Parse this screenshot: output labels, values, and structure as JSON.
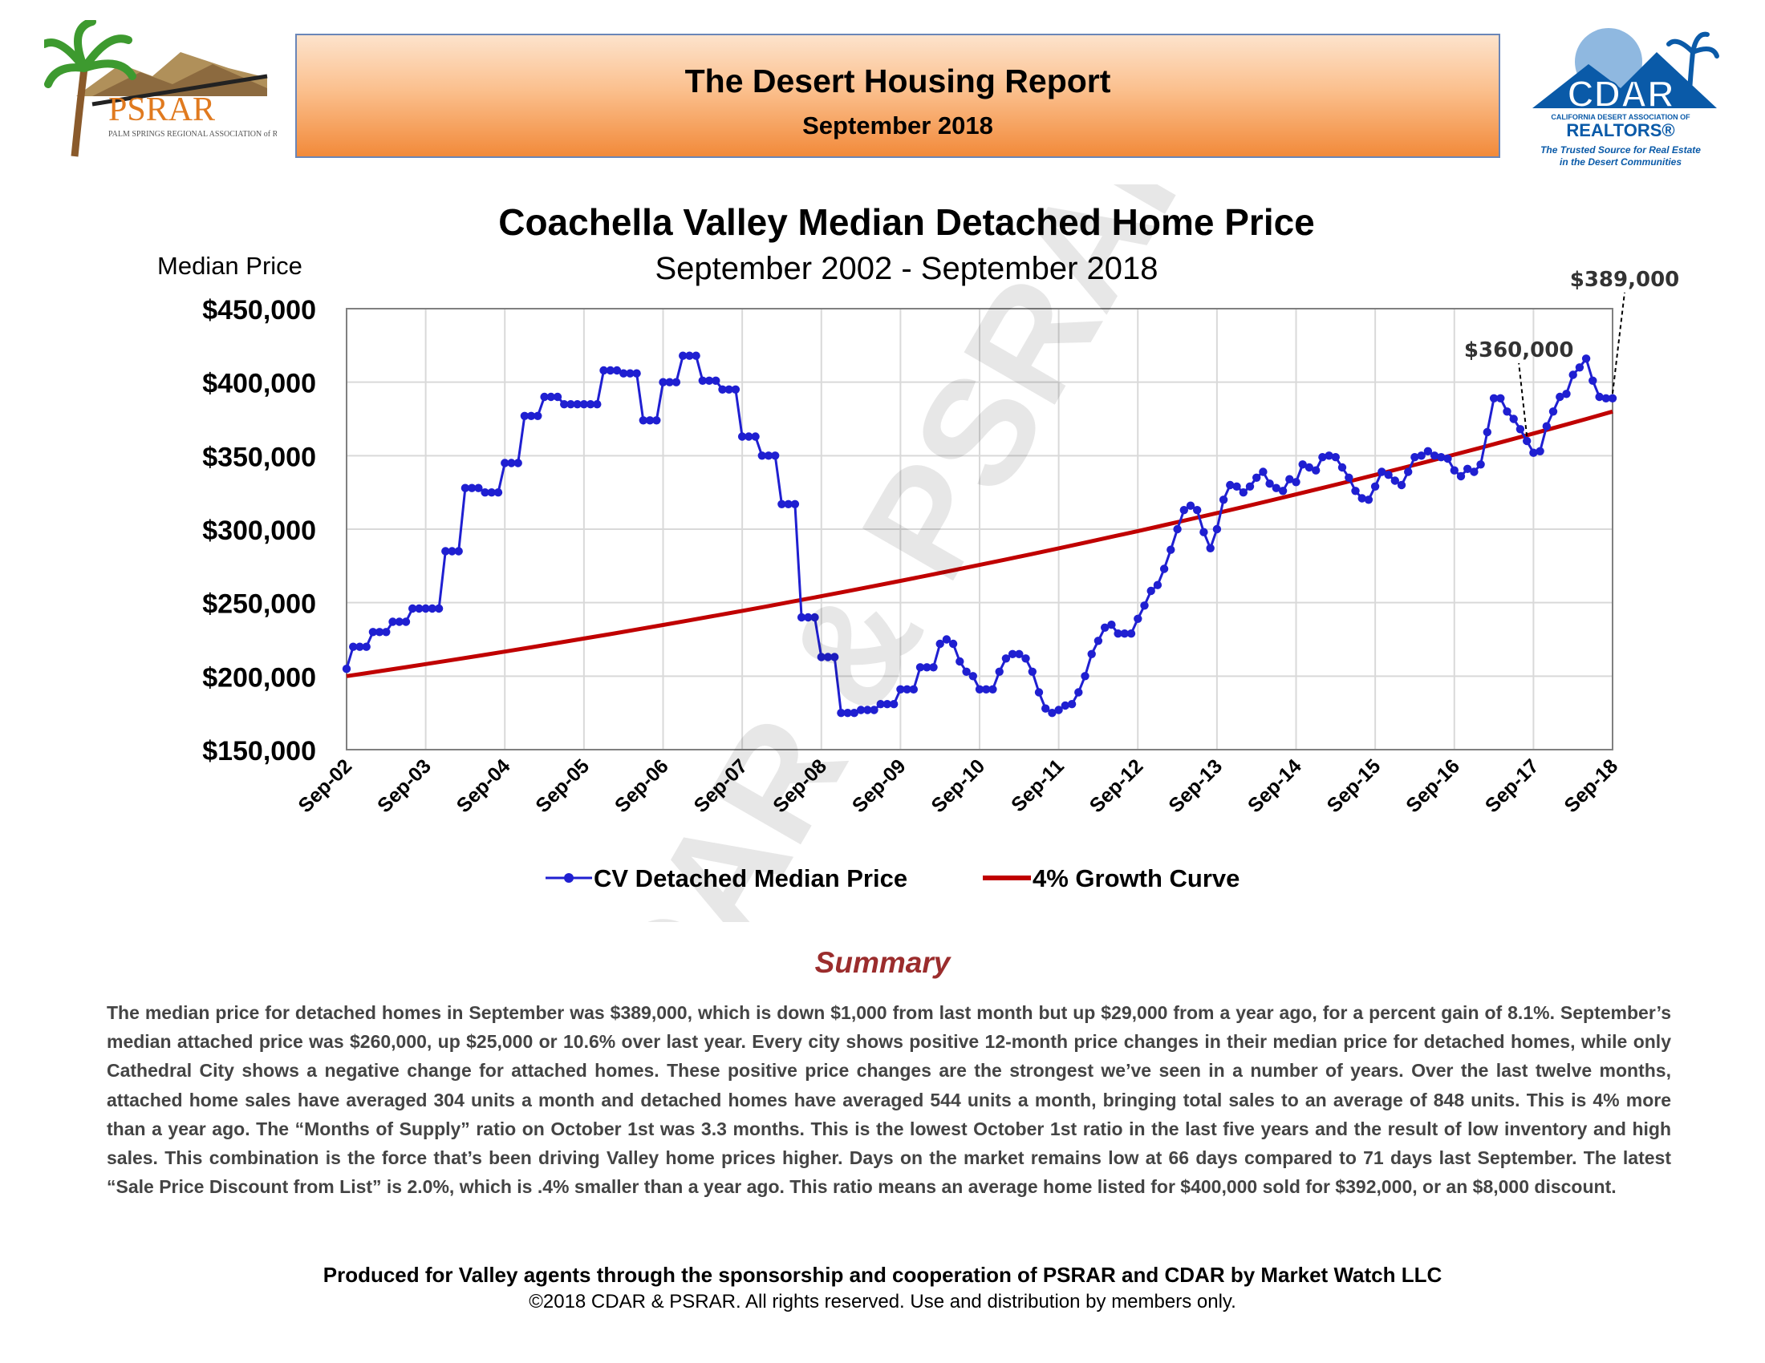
{
  "header": {
    "title": "The Desert Housing Report",
    "subtitle": "September 2018",
    "banner_colors": {
      "light": "#fde3cc",
      "mid": "#fbc08e",
      "dark": "#f28a3a",
      "border": "#6a86b8"
    }
  },
  "logos": {
    "left": {
      "name": "PSRAR",
      "text": "PSRAR",
      "subtext": "PALM SPRINGS REGIONAL ASSOCIATION of REALTORS®"
    },
    "right": {
      "name": "CDAR",
      "text": "CDAR",
      "subtext_line1": "CALIFORNIA DESERT ASSOCIATION OF",
      "subtext_line2": "REALTORS®",
      "tagline_line1": "The Trusted Source for Real Estate",
      "tagline_line2": "in the Desert Communities"
    }
  },
  "watermark": "CDAR & PSRAR",
  "chart_data": {
    "type": "line",
    "title": "Coachella Valley Median Detached Home Price",
    "subtitle": "September 2002 - September 2018",
    "ylabel": "Median Price",
    "xlabel": "",
    "ylim": [
      150000,
      450000
    ],
    "ytick_labels": [
      "$450,000",
      "$400,000",
      "$350,000",
      "$300,000",
      "$250,000",
      "$200,000",
      "$150,000"
    ],
    "ytick_values": [
      450000,
      400000,
      350000,
      300000,
      250000,
      200000,
      150000
    ],
    "xtick_labels": [
      "Sep-02",
      "Sep-03",
      "Sep-04",
      "Sep-05",
      "Sep-06",
      "Sep-07",
      "Sep-08",
      "Sep-09",
      "Sep-10",
      "Sep-11",
      "Sep-12",
      "Sep-13",
      "Sep-14",
      "Sep-15",
      "Sep-16",
      "Sep-17",
      "Sep-18"
    ],
    "grid": true,
    "legend_position": "bottom",
    "colors": {
      "median": "#1f1fd1",
      "growth": "#c00000",
      "grid": "#d9d9d9",
      "axis": "#808080"
    },
    "series": [
      {
        "name": "CV Detached Median Price",
        "keyframes": [
          [
            0,
            205000
          ],
          [
            1,
            220000
          ],
          [
            3,
            220000
          ],
          [
            4,
            230000
          ],
          [
            6,
            230000
          ],
          [
            7,
            237000
          ],
          [
            9,
            237000
          ],
          [
            10,
            246000
          ],
          [
            14,
            246000
          ],
          [
            15,
            285000
          ],
          [
            17,
            285000
          ],
          [
            18,
            328000
          ],
          [
            20,
            328000
          ],
          [
            21,
            325000
          ],
          [
            23,
            325000
          ],
          [
            24,
            345000
          ],
          [
            26,
            345000
          ],
          [
            27,
            377000
          ],
          [
            29,
            377000
          ],
          [
            30,
            390000
          ],
          [
            32,
            390000
          ],
          [
            33,
            385000
          ],
          [
            38,
            385000
          ],
          [
            39,
            408000
          ],
          [
            41,
            408000
          ],
          [
            42,
            406000
          ],
          [
            44,
            406000
          ],
          [
            45,
            374000
          ],
          [
            47,
            374000
          ],
          [
            48,
            400000
          ],
          [
            50,
            400000
          ],
          [
            51,
            418000
          ],
          [
            53,
            418000
          ],
          [
            54,
            401000
          ],
          [
            56,
            401000
          ],
          [
            57,
            395000
          ],
          [
            59,
            395000
          ],
          [
            60,
            363000
          ],
          [
            62,
            363000
          ],
          [
            63,
            350000
          ],
          [
            65,
            350000
          ],
          [
            66,
            317000
          ],
          [
            68,
            317000
          ],
          [
            69,
            240000
          ],
          [
            71,
            240000
          ],
          [
            72,
            213000
          ],
          [
            74,
            213000
          ],
          [
            75,
            175000
          ],
          [
            77,
            175000
          ],
          [
            78,
            177000
          ],
          [
            80,
            177000
          ],
          [
            81,
            181000
          ],
          [
            83,
            181000
          ],
          [
            84,
            191000
          ],
          [
            86,
            191000
          ],
          [
            87,
            206000
          ],
          [
            89,
            206000
          ],
          [
            90,
            222000
          ],
          [
            91,
            225000
          ],
          [
            92,
            222000
          ],
          [
            93,
            210000
          ],
          [
            94,
            203000
          ],
          [
            95,
            200000
          ],
          [
            96,
            191000
          ],
          [
            98,
            191000
          ],
          [
            99,
            203000
          ],
          [
            100,
            212000
          ],
          [
            101,
            215000
          ],
          [
            102,
            215000
          ],
          [
            103,
            212000
          ],
          [
            104,
            203000
          ],
          [
            105,
            189000
          ],
          [
            106,
            178000
          ],
          [
            107,
            175000
          ],
          [
            108,
            177000
          ],
          [
            109,
            180000
          ],
          [
            110,
            181000
          ],
          [
            111,
            189000
          ],
          [
            112,
            200000
          ],
          [
            113,
            215000
          ],
          [
            114,
            224000
          ],
          [
            115,
            233000
          ],
          [
            116,
            235000
          ],
          [
            117,
            229000
          ],
          [
            119,
            229000
          ],
          [
            120,
            239000
          ],
          [
            121,
            248000
          ],
          [
            122,
            258000
          ],
          [
            123,
            262000
          ],
          [
            124,
            273000
          ],
          [
            125,
            286000
          ],
          [
            126,
            300000
          ],
          [
            127,
            313000
          ],
          [
            128,
            316000
          ],
          [
            129,
            313000
          ],
          [
            130,
            298000
          ],
          [
            131,
            287000
          ],
          [
            132,
            300000
          ],
          [
            133,
            320000
          ],
          [
            134,
            330000
          ],
          [
            135,
            329000
          ],
          [
            136,
            325000
          ],
          [
            137,
            329000
          ],
          [
            138,
            335000
          ],
          [
            139,
            339000
          ],
          [
            140,
            331000
          ],
          [
            141,
            328000
          ],
          [
            142,
            326000
          ],
          [
            143,
            334000
          ],
          [
            144,
            332000
          ],
          [
            145,
            344000
          ],
          [
            146,
            342000
          ],
          [
            147,
            340000
          ],
          [
            148,
            349000
          ],
          [
            149,
            350000
          ],
          [
            150,
            349000
          ],
          [
            151,
            342000
          ],
          [
            152,
            335000
          ],
          [
            153,
            326000
          ],
          [
            154,
            321000
          ],
          [
            155,
            320000
          ],
          [
            156,
            329000
          ],
          [
            157,
            339000
          ],
          [
            158,
            337000
          ],
          [
            159,
            333000
          ],
          [
            160,
            330000
          ],
          [
            161,
            339000
          ],
          [
            162,
            349000
          ],
          [
            163,
            350000
          ],
          [
            164,
            353000
          ],
          [
            165,
            350000
          ],
          [
            166,
            349000
          ],
          [
            167,
            348000
          ],
          [
            168,
            340000
          ],
          [
            169,
            336000
          ],
          [
            170,
            341000
          ],
          [
            171,
            339000
          ],
          [
            172,
            344000
          ],
          [
            173,
            366000
          ],
          [
            174,
            389000
          ],
          [
            175,
            389000
          ],
          [
            176,
            380000
          ],
          [
            177,
            375000
          ],
          [
            178,
            368000
          ],
          [
            179,
            360000
          ],
          [
            180,
            352000
          ],
          [
            181,
            353000
          ],
          [
            182,
            370000
          ],
          [
            183,
            380000
          ],
          [
            184,
            390000
          ],
          [
            185,
            392000
          ],
          [
            186,
            405000
          ],
          [
            187,
            410000
          ],
          [
            188,
            416000
          ],
          [
            189,
            401000
          ],
          [
            190,
            390000
          ],
          [
            191,
            389000
          ],
          [
            192,
            389000
          ]
        ]
      },
      {
        "name": "4% Growth Curve",
        "start": 200000,
        "end": 380000,
        "months": 192
      }
    ],
    "annotations": [
      {
        "label": "$360,000",
        "month": 179,
        "value": 360000
      },
      {
        "label": "$389,000",
        "month": 192,
        "value": 389000
      }
    ]
  },
  "summary": {
    "heading": "Summary",
    "text": "The median price for detached homes in September was $389,000, which is down $1,000 from last month but up $29,000 from a year ago, for a percent gain of 8.1%. September’s median attached price was $260,000, up $25,000 or 10.6% over last year. Every city shows positive 12-month price changes in their median price for detached homes, while only Cathedral City shows a negative change for attached homes. These positive price changes are the strongest we’ve seen in a number of years. Over the last twelve months, attached home sales have averaged 304 units a month and detached homes have averaged 544 units a month, bringing total sales to an average of 848 units. This is 4% more than a year ago. The “Months of Supply” ratio on October 1st was 3.3 months. This is the lowest October 1st ratio in the last five years and the result of low inventory and high sales. This combination is the force that’s been driving Valley home prices higher. Days on the market remains low at 66 days compared to 71 days last September. The latest “Sale Price Discount from List” is 2.0%, which is .4% smaller than a year ago. This ratio means an average home listed for $400,000 sold for $392,000, or an $8,000 discount."
  },
  "footer": {
    "credit": "Produced for Valley agents through the sponsorship and cooperation of PSRAR and CDAR by Market Watch LLC",
    "copyright": "©2018 CDAR & PSRAR.  All rights reserved.  Use and distribution by members only."
  }
}
